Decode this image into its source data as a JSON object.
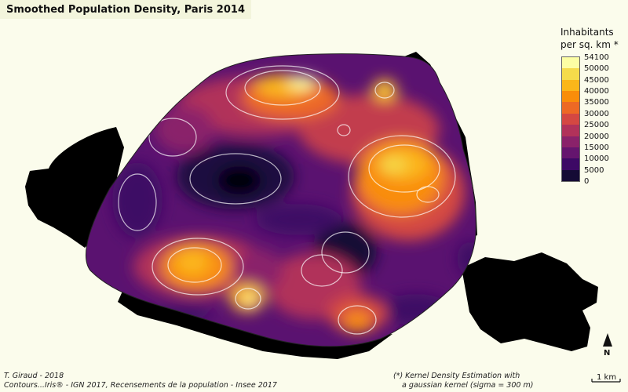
{
  "map": {
    "title": "Smoothed Population Density, Paris 2014",
    "region": "Paris",
    "year": "2014"
  },
  "legend": {
    "title_line1": "Inhabitants",
    "title_line2": "per sq. km *",
    "classes": [
      {
        "label": "54100",
        "value": 54100,
        "color": "#fcfea4"
      },
      {
        "label": "50000",
        "value": 50000,
        "color": "#f5db4b"
      },
      {
        "label": "45000",
        "value": 45000,
        "color": "#fbb61a"
      },
      {
        "label": "40000",
        "value": 40000,
        "color": "#f98d0a"
      },
      {
        "label": "35000",
        "value": 35000,
        "color": "#ed6925"
      },
      {
        "label": "30000",
        "value": 30000,
        "color": "#d44842"
      },
      {
        "label": "25000",
        "value": 25000,
        "color": "#b1325a"
      },
      {
        "label": "20000",
        "value": 20000,
        "color": "#8a226a"
      },
      {
        "label": "15000",
        "value": 15000,
        "color": "#65156e"
      },
      {
        "label": "10000",
        "value": 10000,
        "color": "#3d0965"
      },
      {
        "label": "5000",
        "value": 5000,
        "color": "#150b35"
      },
      {
        "label": "0",
        "value": 0,
        "color": "#000004"
      }
    ]
  },
  "credits": {
    "author": "T. Giraud - 2018",
    "sources": "Contours...Iris® - IGN 2017, Recensements de la population - Insee 2017",
    "note_line1": "(*) Kernel Density Estimation with",
    "note_line2": "a gaussian kernel (sigma = 300 m)"
  },
  "north_arrow": {
    "label": "N"
  },
  "scale_bar": {
    "label": "1 km"
  },
  "colors": {
    "background": "#fbfcec",
    "title_box": "#f3f5dc",
    "outside_paris": "#000000",
    "contour_lines": "#ffffff"
  }
}
